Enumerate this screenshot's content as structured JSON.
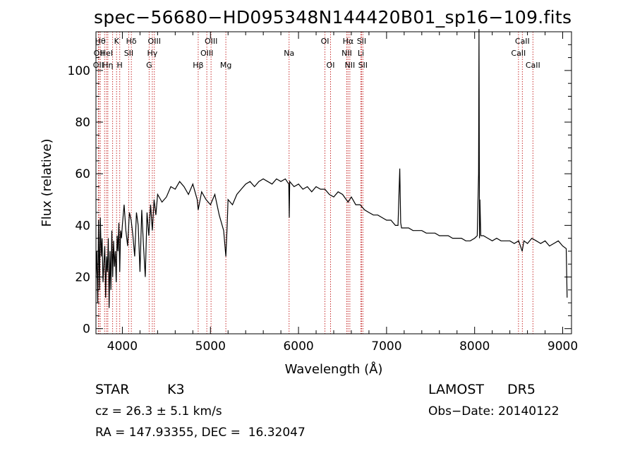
{
  "chart_data": {
    "type": "line",
    "title": "spec−56680−HD095348N144420B01_sp16−109.fits",
    "xlabel": "Wavelength (Å)",
    "ylabel": "Flux (relative)",
    "xlim": [
      3700,
      9100
    ],
    "ylim": [
      -2,
      115
    ],
    "xticks": [
      4000,
      5000,
      6000,
      7000,
      8000,
      9000
    ],
    "yticks": [
      0,
      20,
      40,
      60,
      80,
      100
    ],
    "grid": false,
    "line_color": "#000000",
    "marker_color": "#c83232",
    "series": [
      {
        "x": [
          3700,
          3710,
          3720,
          3730,
          3740,
          3750,
          3760,
          3770,
          3780,
          3790,
          3800,
          3810,
          3820,
          3830,
          3840,
          3850,
          3860,
          3870,
          3880,
          3890,
          3900,
          3910,
          3920,
          3930,
          3940,
          3950,
          3960,
          3970,
          3980,
          3990,
          4000,
          4020,
          4040,
          4060,
          4080,
          4100,
          4120,
          4140,
          4160,
          4180,
          4200,
          4220,
          4240,
          4260,
          4280,
          4300,
          4320,
          4340,
          4360,
          4380,
          4400,
          4450,
          4500,
          4550,
          4600,
          4650,
          4700,
          4750,
          4800,
          4850,
          4861,
          4900,
          4950,
          5000,
          5050,
          5100,
          5150,
          5175,
          5190,
          5200,
          5250,
          5300,
          5350,
          5400,
          5450,
          5500,
          5550,
          5600,
          5650,
          5700,
          5750,
          5800,
          5850,
          5890,
          5895,
          5900,
          5950,
          6000,
          6050,
          6100,
          6150,
          6200,
          6250,
          6300,
          6350,
          6400,
          6450,
          6500,
          6563,
          6600,
          6650,
          6700,
          6750,
          6800,
          6850,
          6900,
          6950,
          7000,
          7050,
          7100,
          7130,
          7150,
          7160,
          7170,
          7200,
          7250,
          7300,
          7350,
          7400,
          7450,
          7500,
          7550,
          7600,
          7650,
          7700,
          7750,
          7800,
          7850,
          7900,
          7950,
          8000,
          8030,
          8045,
          8050,
          8055,
          8060,
          8070,
          8100,
          8150,
          8200,
          8250,
          8300,
          8350,
          8400,
          8450,
          8500,
          8540,
          8560,
          8600,
          8650,
          8700,
          8750,
          8800,
          8850,
          8900,
          8950,
          9000,
          9040,
          9050
        ],
        "y": [
          20,
          30,
          10,
          42,
          15,
          43,
          28,
          35,
          18,
          25,
          32,
          12,
          28,
          22,
          35,
          8,
          30,
          15,
          38,
          20,
          34,
          24,
          30,
          18,
          36,
          30,
          41,
          22,
          38,
          35,
          40,
          48,
          38,
          32,
          45,
          42,
          36,
          28,
          45,
          40,
          22,
          46,
          32,
          20,
          45,
          36,
          48,
          38,
          50,
          44,
          52,
          49,
          51,
          55,
          54,
          57,
          55,
          52,
          56,
          50,
          46,
          53,
          50,
          48,
          52,
          44,
          38,
          28,
          40,
          50,
          48,
          52,
          54,
          56,
          57,
          55,
          57,
          58,
          57,
          56,
          58,
          57,
          58,
          56,
          43,
          57,
          55,
          56,
          54,
          55,
          53,
          55,
          54,
          54,
          52,
          51,
          53,
          52,
          49,
          51,
          48,
          48,
          46,
          45,
          44,
          44,
          43,
          42,
          42,
          40,
          40,
          62,
          41,
          39,
          39,
          39,
          38,
          38,
          38,
          37,
          37,
          37,
          36,
          36,
          36,
          35,
          35,
          35,
          34,
          34,
          35,
          36,
          60,
          116,
          35,
          50,
          36,
          36,
          35,
          34,
          35,
          34,
          34,
          34,
          33,
          34,
          30,
          34,
          33,
          35,
          34,
          33,
          34,
          32,
          33,
          34,
          32,
          31,
          12
        ]
      }
    ],
    "line_markers": [
      {
        "x": 3727,
        "row": 2,
        "label": "OII"
      },
      {
        "x": 3734,
        "row": 1,
        "label": "OII"
      },
      {
        "x": 3750,
        "row": 0,
        "label": "Hθ"
      },
      {
        "x": 3798,
        "row": 0,
        "label": ""
      },
      {
        "x": 3820,
        "row": 1,
        "label": "HeI"
      },
      {
        "x": 3835,
        "row": 2,
        "label": "Hη"
      },
      {
        "x": 3889,
        "row": 0,
        "label": ""
      },
      {
        "x": 3934,
        "row": 0,
        "label": "K"
      },
      {
        "x": 3970,
        "row": 2,
        "label": "H"
      },
      {
        "x": 4072,
        "row": 1,
        "label": "SII"
      },
      {
        "x": 4102,
        "row": 0,
        "label": "Hδ"
      },
      {
        "x": 4304,
        "row": 2,
        "label": "G"
      },
      {
        "x": 4340,
        "row": 1,
        "label": "Hγ"
      },
      {
        "x": 4363,
        "row": 0,
        "label": "OIII"
      },
      {
        "x": 4861,
        "row": 2,
        "label": "Hβ"
      },
      {
        "x": 4959,
        "row": 1,
        "label": "OIII"
      },
      {
        "x": 5007,
        "row": 0,
        "label": "OIII"
      },
      {
        "x": 5175,
        "row": 2,
        "label": "Mg"
      },
      {
        "x": 5893,
        "row": 1,
        "label": "Na"
      },
      {
        "x": 6300,
        "row": 0,
        "label": "OI"
      },
      {
        "x": 6364,
        "row": 2,
        "label": "OI"
      },
      {
        "x": 6548,
        "row": 1,
        "label": "NII"
      },
      {
        "x": 6563,
        "row": 0,
        "label": "Hα"
      },
      {
        "x": 6583,
        "row": 2,
        "label": "NII"
      },
      {
        "x": 6708,
        "row": 1,
        "label": "Li"
      },
      {
        "x": 6716,
        "row": 0,
        "label": "SII"
      },
      {
        "x": 6731,
        "row": 2,
        "label": "SII"
      },
      {
        "x": 8498,
        "row": 1,
        "label": "CaII"
      },
      {
        "x": 8542,
        "row": 0,
        "label": "CaII"
      },
      {
        "x": 8662,
        "row": 2,
        "label": "CaII"
      }
    ]
  },
  "info": {
    "object_class": "STAR",
    "subclass": "K3",
    "survey": "LAMOST",
    "release": "DR5",
    "redshift_text": "cz = 26.3 ± 5.1 km/s",
    "obs_date_text": "Obs−Date: 20140122",
    "coords_text": "RA = 147.93355, DEC =  16.32047"
  }
}
